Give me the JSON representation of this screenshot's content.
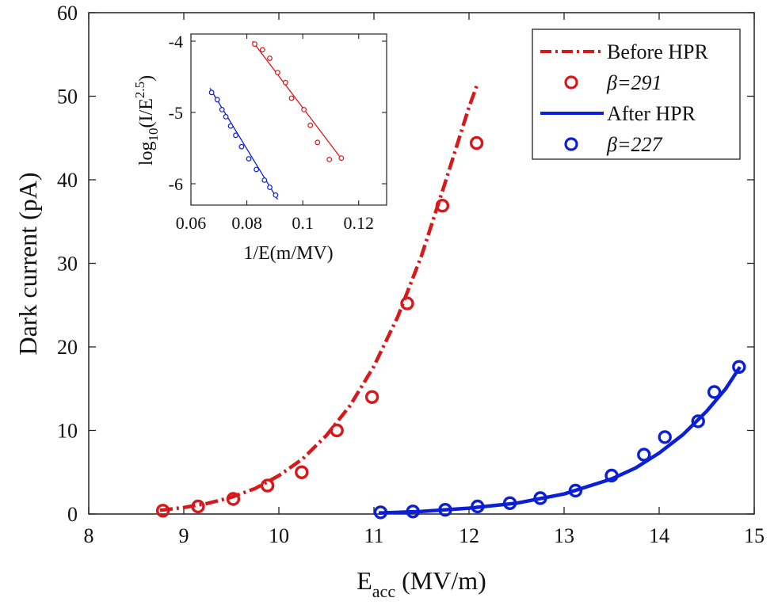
{
  "chart_data": [
    {
      "type": "scatter",
      "role": "main",
      "xlabel_main": "E",
      "xlabel_sub": "acc",
      "xlabel_units": " (MV/m)",
      "ylabel": "Dark current (pA)",
      "xlim": [
        8,
        15
      ],
      "ylim": [
        0,
        60
      ],
      "xticks": [
        8,
        9,
        10,
        11,
        12,
        13,
        14,
        15
      ],
      "yticks": [
        0,
        10,
        20,
        30,
        40,
        50,
        60
      ],
      "series": [
        {
          "name": "Before HPR",
          "color": "#d7191c",
          "line_style": "dashdot",
          "marker_label": "β=291",
          "x": [
            8.78,
            9.15,
            9.52,
            9.88,
            10.24,
            10.61,
            10.98,
            11.35,
            11.72,
            12.08
          ],
          "y": [
            0.4,
            0.9,
            1.8,
            3.4,
            5.0,
            10.0,
            14.0,
            25.2,
            36.9,
            44.4
          ],
          "fit_x": [
            8.75,
            9.0,
            9.25,
            9.5,
            9.75,
            10.0,
            10.25,
            10.5,
            10.75,
            11.0,
            11.25,
            11.5,
            11.75,
            12.0,
            12.08
          ],
          "fit_y": [
            0.45,
            0.78,
            1.27,
            2.0,
            3.05,
            4.6,
            6.6,
            9.4,
            13.0,
            17.7,
            23.6,
            30.9,
            39.7,
            48.7,
            51.2
          ]
        },
        {
          "name": "After HPR",
          "color": "#0b1fd6",
          "line_style": "solid",
          "marker_label": "β=227",
          "x": [
            11.07,
            11.41,
            11.75,
            12.09,
            12.43,
            12.75,
            13.12,
            13.5,
            13.84,
            14.06,
            14.41,
            14.58,
            14.84
          ],
          "y": [
            0.2,
            0.3,
            0.5,
            0.9,
            1.3,
            1.9,
            2.8,
            4.6,
            7.1,
            9.2,
            11.1,
            14.6,
            17.6
          ],
          "fit_x": [
            11.05,
            11.5,
            12.0,
            12.5,
            13.0,
            13.5,
            13.75,
            14.0,
            14.25,
            14.5,
            14.7,
            14.85
          ],
          "fit_y": [
            0.12,
            0.3,
            0.7,
            1.3,
            2.4,
            4.2,
            5.5,
            7.3,
            9.5,
            12.3,
            15.0,
            17.6
          ]
        }
      ]
    },
    {
      "type": "scatter",
      "role": "inset",
      "xlabel": "1/E(m/MV)",
      "ylabel_main": "log",
      "ylabel_sub": "10",
      "ylabel_mid": "(I/E",
      "ylabel_sup": "2.5",
      "ylabel_end": ")",
      "xlim": [
        0.06,
        0.13
      ],
      "ylim": [
        -6.3,
        -3.9
      ],
      "xticks": [
        0.06,
        0.08,
        0.1,
        0.12
      ],
      "xtick_labels": [
        "0.06",
        "0.08",
        "0.1",
        "0.12"
      ],
      "yticks": [
        -4,
        -5,
        -6
      ],
      "ytick_labels": [
        "-4",
        "-5",
        "-6"
      ],
      "series": [
        {
          "name": "Before HPR",
          "color": "#d7191c",
          "x": [
            0.0828,
            0.0856,
            0.0882,
            0.091,
            0.0938,
            0.096,
            0.1004,
            0.1027,
            0.1053,
            0.1095,
            0.1138
          ],
          "y": [
            -4.04,
            -4.12,
            -4.24,
            -4.44,
            -4.58,
            -4.8,
            -4.96,
            -5.18,
            -5.42,
            -5.66,
            -5.64
          ],
          "fit_x": [
            0.082,
            0.114
          ],
          "fit_y": [
            -4.0,
            -5.66
          ]
        },
        {
          "name": "After HPR",
          "color": "#0b1fd6",
          "x": [
            0.0674,
            0.0694,
            0.0711,
            0.0725,
            0.0742,
            0.076,
            0.0781,
            0.0807,
            0.0834,
            0.0863,
            0.0882,
            0.0903
          ],
          "y": [
            -4.72,
            -4.82,
            -4.96,
            -5.06,
            -5.19,
            -5.32,
            -5.48,
            -5.65,
            -5.8,
            -5.95,
            -6.05,
            -6.16
          ],
          "fit_x": [
            0.0668,
            0.091
          ],
          "fit_y": [
            -4.66,
            -6.22
          ]
        }
      ]
    }
  ],
  "legend": {
    "position": "top-right",
    "entries": [
      {
        "label": "Before HPR",
        "kind": "line",
        "style": "dashdot",
        "color": "#d7191c"
      },
      {
        "label": "β=291",
        "kind": "marker",
        "color": "#d7191c"
      },
      {
        "label": "After HPR",
        "kind": "line",
        "style": "solid",
        "color": "#0b1fd6"
      },
      {
        "label": "β=227",
        "kind": "marker",
        "color": "#0b1fd6"
      }
    ]
  }
}
